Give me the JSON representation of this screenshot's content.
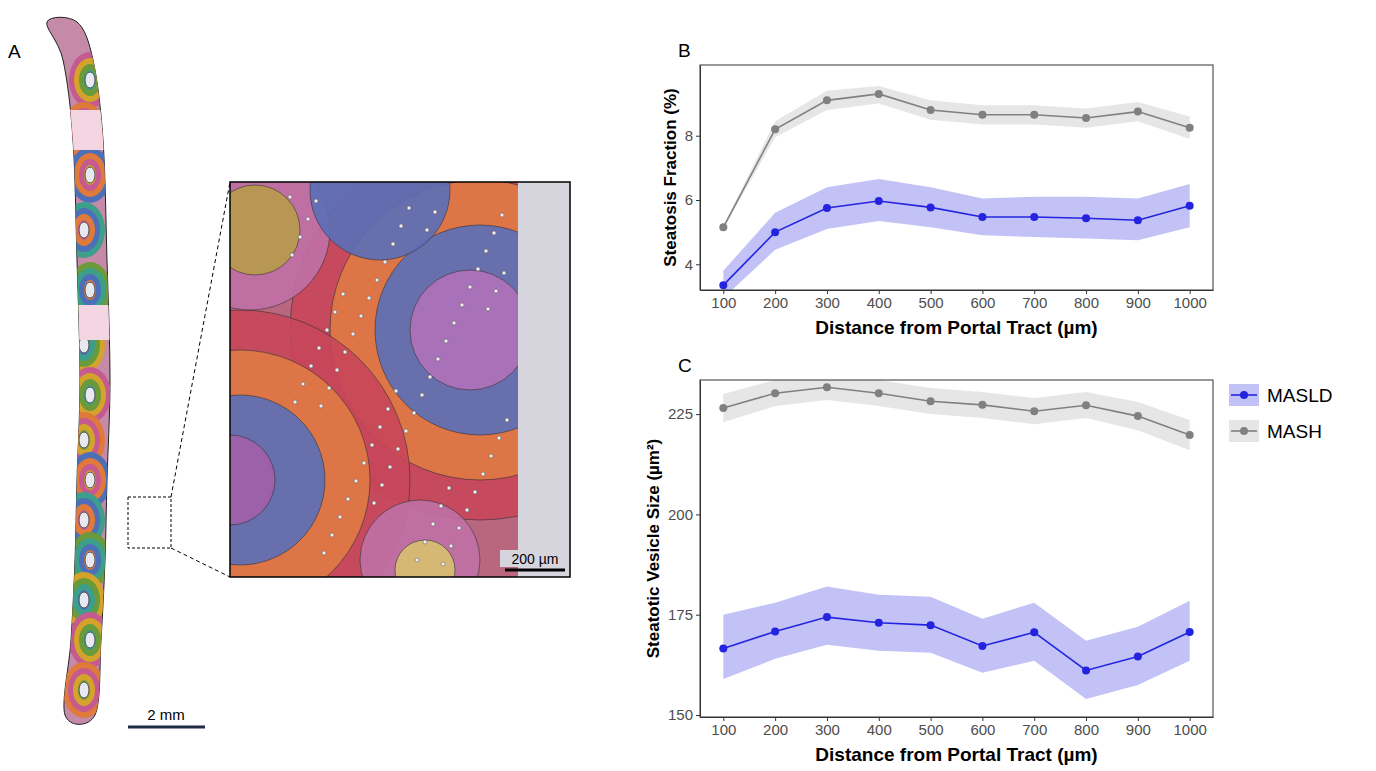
{
  "figure": {
    "panel_letters": [
      "A",
      "B",
      "C"
    ],
    "panel_a": {
      "scale_bar": "2 mm",
      "inset_scale_bar": "200 µm"
    }
  },
  "chart_data": [
    {
      "type": "line",
      "x_label": "Distance from Portal Tract (µm)",
      "y_label": "Steatosis Fraction (%)",
      "x": [
        100,
        200,
        300,
        400,
        500,
        600,
        700,
        800,
        900,
        1000
      ],
      "xlim": [
        55,
        1045
      ],
      "xticks": [
        100,
        200,
        300,
        400,
        500,
        600,
        700,
        800,
        900,
        1000
      ],
      "ylim": [
        3.2,
        10.2
      ],
      "yticks": [
        4,
        6,
        8
      ],
      "grid": false,
      "legend": "right",
      "marker": "circle",
      "series": [
        {
          "name": "MASLD",
          "color": "#2424e0",
          "values": [
            3.35,
            5.0,
            5.75,
            5.97,
            5.77,
            5.47,
            5.47,
            5.43,
            5.37,
            5.82
          ],
          "lower": [
            2.95,
            4.45,
            5.1,
            5.35,
            5.15,
            4.9,
            4.85,
            4.8,
            4.75,
            5.15
          ],
          "upper": [
            3.8,
            5.6,
            6.4,
            6.65,
            6.4,
            6.05,
            6.1,
            6.1,
            6.05,
            6.5
          ]
        },
        {
          "name": "MASH",
          "color": "#808080",
          "values": [
            5.15,
            8.2,
            9.1,
            9.3,
            8.8,
            8.65,
            8.65,
            8.55,
            8.75,
            8.25
          ],
          "lower": [
            5.1,
            7.95,
            8.8,
            9.0,
            8.5,
            8.35,
            8.35,
            8.25,
            8.45,
            7.9
          ],
          "upper": [
            5.2,
            8.45,
            9.4,
            9.55,
            9.1,
            8.95,
            8.95,
            8.85,
            9.05,
            8.6
          ]
        }
      ]
    },
    {
      "type": "line",
      "x_label": "Distance from Portal Tract (µm)",
      "y_label": "Steatotic Vesicle Size (µm²)",
      "x": [
        100,
        200,
        300,
        400,
        500,
        600,
        700,
        800,
        900,
        1000
      ],
      "xlim": [
        55,
        1045
      ],
      "xticks": [
        100,
        200,
        300,
        400,
        500,
        600,
        700,
        800,
        900,
        1000
      ],
      "ylim": [
        149.5,
        233.5
      ],
      "yticks": [
        150,
        175,
        200,
        225
      ],
      "grid": false,
      "marker": "circle",
      "series": [
        {
          "color": "#2424e0",
          "values": [
            166.6,
            170.8,
            174.4,
            173.0,
            172.4,
            167.2,
            170.6,
            161.1,
            164.6,
            170.7
          ],
          "lower": [
            159,
            164,
            167.5,
            166,
            165.5,
            160.5,
            163.5,
            154,
            157.5,
            163.5
          ],
          "upper": [
            175,
            178,
            182,
            180,
            179.5,
            174,
            178,
            168.5,
            172,
            178.5
          ]
        },
        {
          "color": "#808080",
          "values": [
            226.5,
            230.2,
            231.7,
            230.2,
            228.2,
            227.3,
            225.7,
            227.2,
            224.5,
            219.8
          ],
          "lower": [
            223,
            227,
            228.5,
            227,
            225,
            224,
            222.5,
            224,
            221,
            216
          ],
          "upper": [
            230,
            233.5,
            235,
            233.5,
            231.5,
            230.5,
            229,
            230.5,
            228,
            223.5
          ]
        }
      ]
    }
  ]
}
